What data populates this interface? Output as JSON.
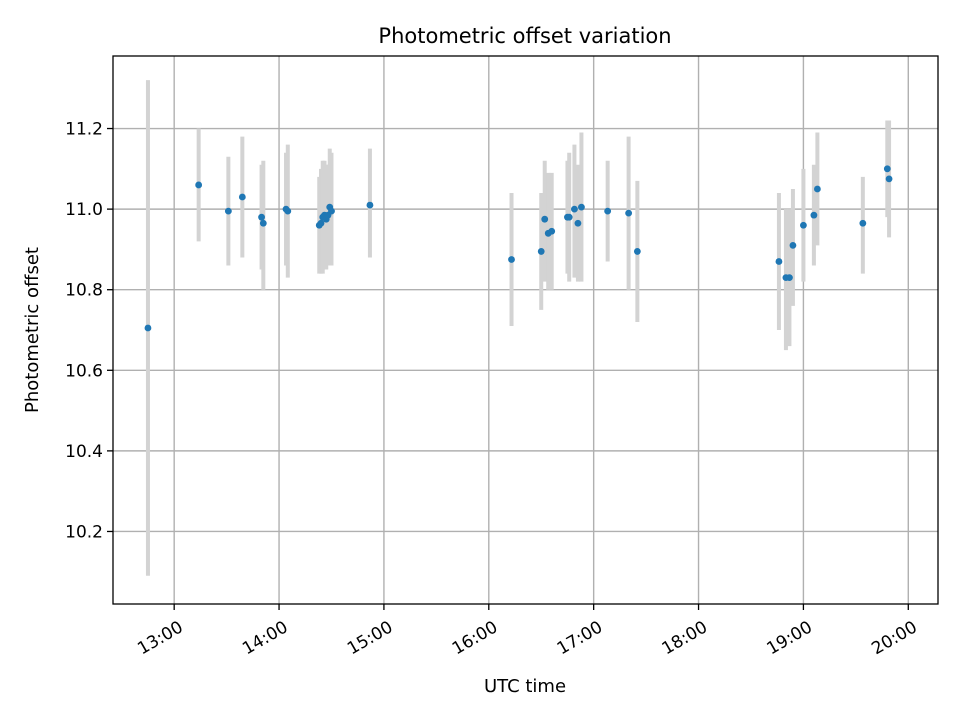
{
  "chart_data": {
    "type": "scatter",
    "title": "Photometric offset variation",
    "xlabel": "UTC time",
    "ylabel": "Photometric offset",
    "xlim": [
      "12:25",
      "20:17"
    ],
    "ylim": [
      10.02,
      11.38
    ],
    "x_ticks": [
      "13:00",
      "14:00",
      "15:00",
      "16:00",
      "17:00",
      "18:00",
      "19:00",
      "20:00"
    ],
    "y_ticks": [
      "10.2",
      "10.4",
      "10.6",
      "10.8",
      "11.0",
      "11.2"
    ],
    "grid": true,
    "error_color": "#d3d3d3",
    "marker_color": "#1f77b4",
    "points": [
      {
        "x": "12:45",
        "y": 10.705,
        "lo": 10.09,
        "hi": 11.32
      },
      {
        "x": "13:14",
        "y": 11.06,
        "lo": 10.92,
        "hi": 11.2
      },
      {
        "x": "13:31",
        "y": 10.995,
        "lo": 10.86,
        "hi": 11.13
      },
      {
        "x": "13:39",
        "y": 11.03,
        "lo": 10.88,
        "hi": 11.18
      },
      {
        "x": "13:50",
        "y": 10.98,
        "lo": 10.85,
        "hi": 11.11
      },
      {
        "x": "13:51",
        "y": 10.965,
        "lo": 10.8,
        "hi": 11.12
      },
      {
        "x": "14:04",
        "y": 11.0,
        "lo": 10.86,
        "hi": 11.14
      },
      {
        "x": "14:05",
        "y": 10.995,
        "lo": 10.83,
        "hi": 11.16
      },
      {
        "x": "14:23",
        "y": 10.96,
        "lo": 10.84,
        "hi": 11.08
      },
      {
        "x": "14:24",
        "y": 10.965,
        "lo": 10.84,
        "hi": 11.1
      },
      {
        "x": "14:25",
        "y": 10.98,
        "lo": 10.84,
        "hi": 11.12
      },
      {
        "x": "14:26",
        "y": 10.985,
        "lo": 10.85,
        "hi": 11.12
      },
      {
        "x": "14:27",
        "y": 10.975,
        "lo": 10.85,
        "hi": 11.11
      },
      {
        "x": "14:28",
        "y": 10.985,
        "lo": 10.86,
        "hi": 11.11
      },
      {
        "x": "14:29",
        "y": 11.005,
        "lo": 10.86,
        "hi": 11.15
      },
      {
        "x": "14:30",
        "y": 10.995,
        "lo": 10.86,
        "hi": 11.14
      },
      {
        "x": "14:52",
        "y": 11.01,
        "lo": 10.88,
        "hi": 11.15
      },
      {
        "x": "16:13",
        "y": 10.875,
        "lo": 10.71,
        "hi": 11.04
      },
      {
        "x": "16:30",
        "y": 10.895,
        "lo": 10.75,
        "hi": 11.04
      },
      {
        "x": "16:32",
        "y": 10.975,
        "lo": 10.82,
        "hi": 11.12
      },
      {
        "x": "16:34",
        "y": 10.94,
        "lo": 10.8,
        "hi": 11.09
      },
      {
        "x": "16:36",
        "y": 10.945,
        "lo": 10.8,
        "hi": 11.09
      },
      {
        "x": "16:45",
        "y": 10.98,
        "lo": 10.84,
        "hi": 11.12
      },
      {
        "x": "16:46",
        "y": 10.98,
        "lo": 10.82,
        "hi": 11.14
      },
      {
        "x": "16:49",
        "y": 11.0,
        "lo": 10.83,
        "hi": 11.16
      },
      {
        "x": "16:51",
        "y": 10.965,
        "lo": 10.82,
        "hi": 11.11
      },
      {
        "x": "16:53",
        "y": 11.005,
        "lo": 10.82,
        "hi": 11.19
      },
      {
        "x": "17:08",
        "y": 10.995,
        "lo": 10.87,
        "hi": 11.12
      },
      {
        "x": "17:20",
        "y": 10.99,
        "lo": 10.8,
        "hi": 11.18
      },
      {
        "x": "17:25",
        "y": 10.895,
        "lo": 10.72,
        "hi": 11.07
      },
      {
        "x": "18:46",
        "y": 10.87,
        "lo": 10.7,
        "hi": 11.04
      },
      {
        "x": "18:50",
        "y": 10.83,
        "lo": 10.65,
        "hi": 11.0
      },
      {
        "x": "18:52",
        "y": 10.83,
        "lo": 10.66,
        "hi": 11.0
      },
      {
        "x": "18:54",
        "y": 10.91,
        "lo": 10.76,
        "hi": 11.05
      },
      {
        "x": "19:00",
        "y": 10.96,
        "lo": 10.82,
        "hi": 11.1
      },
      {
        "x": "19:06",
        "y": 10.985,
        "lo": 10.86,
        "hi": 11.11
      },
      {
        "x": "19:08",
        "y": 11.05,
        "lo": 10.91,
        "hi": 11.19
      },
      {
        "x": "19:34",
        "y": 10.965,
        "lo": 10.84,
        "hi": 11.08
      },
      {
        "x": "19:48",
        "y": 11.1,
        "lo": 10.98,
        "hi": 11.22
      },
      {
        "x": "19:49",
        "y": 11.075,
        "lo": 10.93,
        "hi": 11.22
      }
    ]
  }
}
